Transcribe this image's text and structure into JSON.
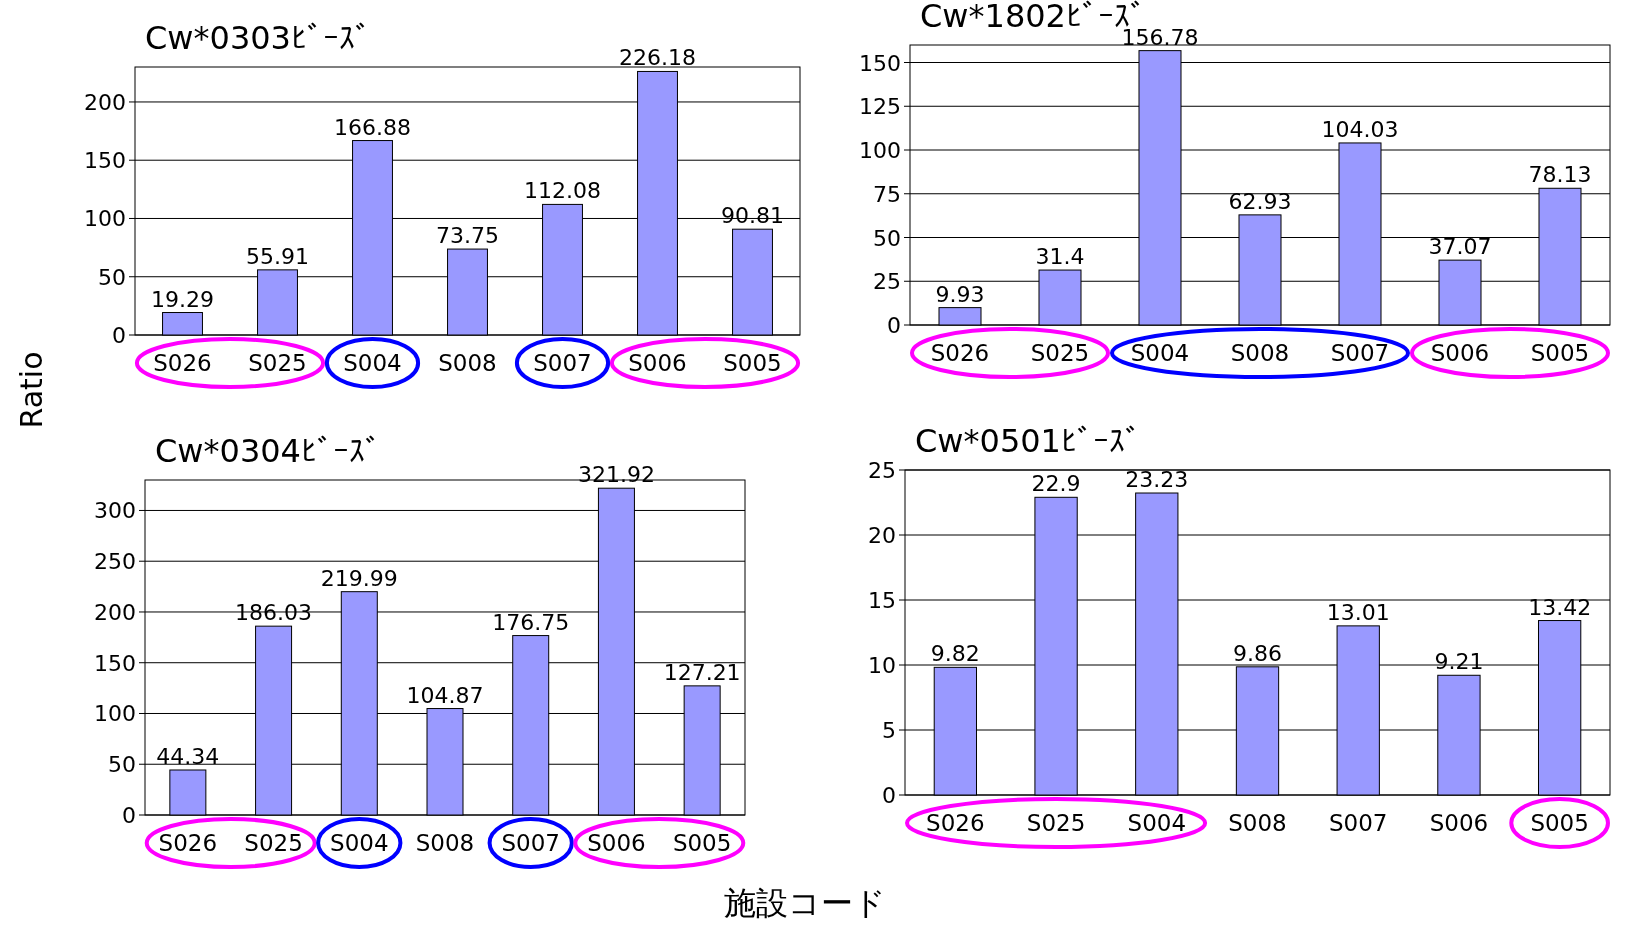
{
  "chart_data": [
    {
      "type": "bar",
      "title": "Cw*0303ﾋﾞｰｽﾞ",
      "ylabel": "Ratio",
      "categories": [
        "S026",
        "S025",
        "S004",
        "S008",
        "S007",
        "S006",
        "S005"
      ],
      "values": [
        19.29,
        55.91,
        166.88,
        73.75,
        112.08,
        226.18,
        90.81
      ],
      "color": "#9999ff",
      "ylim": [
        0,
        230
      ],
      "yticks": [
        0,
        50,
        100,
        150,
        200
      ],
      "grid": "y",
      "data_labels": true
    },
    {
      "type": "bar",
      "title": "Cw*1802ﾋﾞｰｽﾞ",
      "categories": [
        "S026",
        "S025",
        "S004",
        "S008",
        "S007",
        "S006",
        "S005"
      ],
      "values": [
        9.93,
        31.4,
        156.78,
        62.93,
        104.03,
        37.07,
        78.13
      ],
      "color": "#9999ff",
      "ylim": [
        0,
        160
      ],
      "yticks": [
        0,
        25,
        50,
        75,
        100,
        125,
        150
      ],
      "grid": "y",
      "data_labels": true
    },
    {
      "type": "bar",
      "title": "Cw*0304ﾋﾞｰｽﾞ",
      "categories": [
        "S026",
        "S025",
        "S004",
        "S008",
        "S007",
        "S006",
        "S005"
      ],
      "values": [
        44.34,
        186.03,
        219.99,
        104.87,
        176.75,
        321.92,
        127.21
      ],
      "color": "#9999ff",
      "ylim": [
        0,
        330
      ],
      "yticks": [
        0,
        50,
        100,
        150,
        200,
        250,
        300
      ],
      "grid": "y",
      "data_labels": true
    },
    {
      "type": "bar",
      "title": "Cw*0501ﾋﾞｰｽﾞ",
      "xlabel": "施設コード",
      "categories": [
        "S026",
        "S025",
        "S004",
        "S008",
        "S007",
        "S006",
        "S005"
      ],
      "values": [
        9.82,
        22.9,
        23.23,
        9.86,
        13.01,
        9.21,
        13.42
      ],
      "color": "#9999ff",
      "ylim": [
        0,
        25
      ],
      "yticks": [
        0,
        5,
        10,
        15,
        20,
        25
      ],
      "grid": "y",
      "data_labels": true
    }
  ]
}
